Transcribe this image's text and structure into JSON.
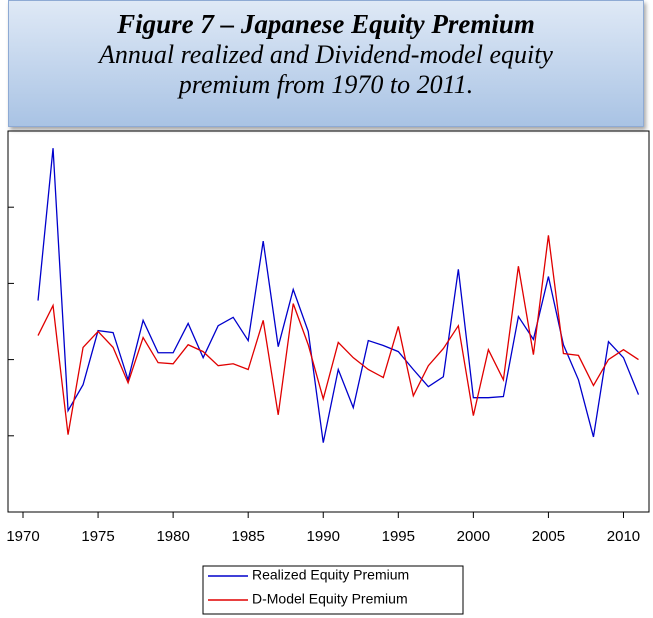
{
  "chart_data": {
    "type": "line",
    "title": "Figure 7 – Japanese Equity Premium",
    "subtitle": "Annual realized and Dividend-model equity premium from 1970 to 2011.",
    "x": [
      1971,
      1972,
      1973,
      1974,
      1975,
      1976,
      1977,
      1978,
      1979,
      1980,
      1981,
      1982,
      1983,
      1984,
      1985,
      1986,
      1987,
      1988,
      1989,
      1990,
      1991,
      1992,
      1993,
      1994,
      1995,
      1996,
      1997,
      1998,
      1999,
      2000,
      2001,
      2002,
      2003,
      2004,
      2005,
      2006,
      2007,
      2008,
      2009,
      2010,
      2011
    ],
    "series": [
      {
        "name": "Realized Equity Premium",
        "color": "#0000cc",
        "values": [
          0.155,
          0.555,
          -0.134,
          -0.066,
          0.076,
          0.071,
          -0.053,
          0.103,
          0.018,
          0.018,
          0.095,
          0.005,
          0.089,
          0.111,
          0.05,
          0.311,
          0.034,
          0.184,
          0.074,
          -0.218,
          -0.026,
          -0.126,
          0.05,
          0.037,
          0.021,
          -0.026,
          -0.071,
          -0.045,
          0.237,
          -0.1,
          -0.1,
          -0.097,
          0.113,
          0.053,
          0.218,
          0.039,
          -0.053,
          -0.203,
          0.047,
          0.005,
          -0.092
        ]
      },
      {
        "name": "D-Model Equity Premium",
        "color": "#e00000",
        "values": [
          0.063,
          0.142,
          -0.197,
          0.032,
          0.074,
          0.032,
          -0.061,
          0.058,
          -0.008,
          -0.011,
          0.039,
          0.021,
          -0.016,
          -0.011,
          -0.026,
          0.103,
          -0.145,
          0.147,
          0.039,
          -0.103,
          0.045,
          0.005,
          -0.026,
          -0.047,
          0.087,
          -0.095,
          -0.016,
          0.029,
          0.089,
          -0.147,
          0.026,
          -0.053,
          0.245,
          0.013,
          0.326,
          0.016,
          0.011,
          -0.068,
          0,
          0.026,
          0
        ]
      }
    ],
    "xlim": [
      1969,
      2011.7
    ],
    "xticks": [
      1970,
      1975,
      1980,
      1985,
      1990,
      1995,
      2000,
      2005,
      2010
    ],
    "ylim": [
      -0.4,
      0.6
    ],
    "yticks": [
      -0.2,
      0,
      0.2,
      0.4
    ],
    "legend": "bottom"
  }
}
